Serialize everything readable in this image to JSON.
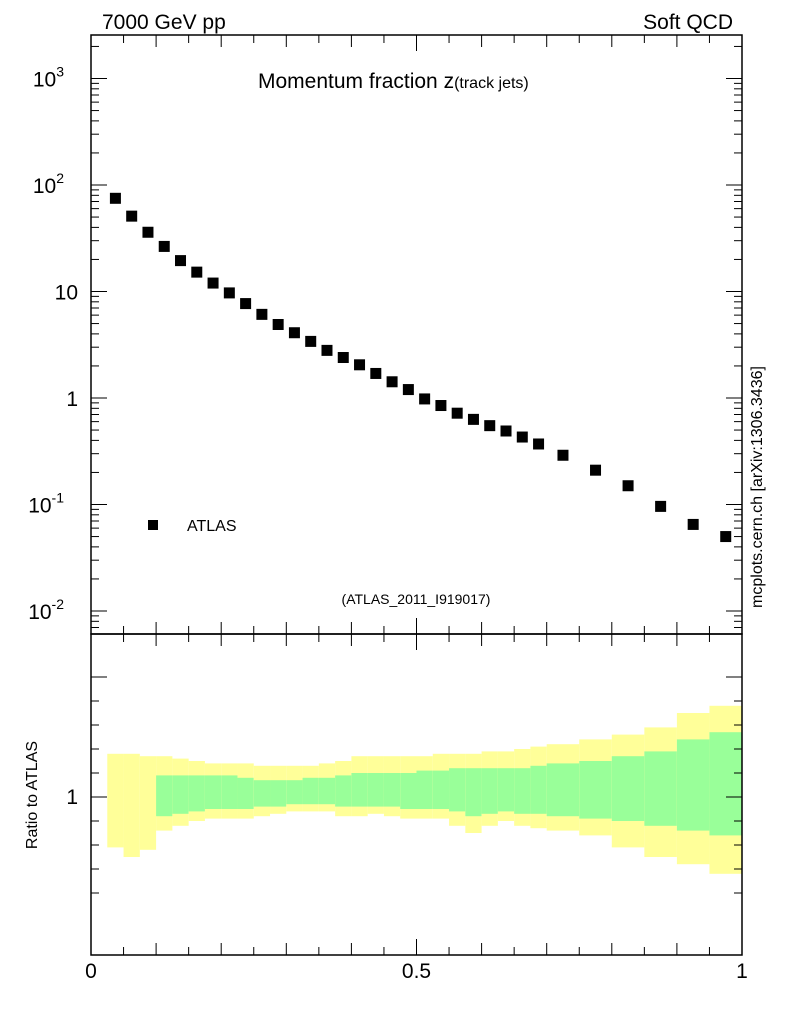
{
  "header": {
    "left": "7000 GeV pp",
    "right": "Soft QCD",
    "side_label": "mcplots.cern.ch [arXiv:1306.3436]"
  },
  "chart_data": {
    "type": "scatter",
    "title": "Momentum fraction z",
    "title_sub": "(track jets)",
    "analysis_id": "(ATLAS_2011_I919017)",
    "legend": "ATLAS",
    "legend_position": "lower-left",
    "grid": false,
    "upper": {
      "yscale": "log",
      "ylim": [
        0.007,
        2500
      ],
      "yticks": [
        {
          "value": 0.01,
          "base": "10",
          "exp": "-2"
        },
        {
          "value": 0.1,
          "base": "10",
          "exp": "-1"
        },
        {
          "value": 1,
          "base": "1",
          "exp": ""
        },
        {
          "value": 10,
          "base": "10",
          "exp": ""
        },
        {
          "value": 100,
          "base": "10",
          "exp": "2"
        },
        {
          "value": 1000,
          "base": "10",
          "exp": "3"
        }
      ]
    },
    "xlim": [
      0,
      1
    ],
    "xticks": [
      {
        "value": 0,
        "label": "0"
      },
      {
        "value": 0.5,
        "label": "0.5"
      },
      {
        "value": 1,
        "label": "1"
      }
    ],
    "series": [
      {
        "name": "ATLAS",
        "x": [
          0.0375,
          0.0625,
          0.0875,
          0.1125,
          0.1375,
          0.1625,
          0.1875,
          0.2125,
          0.2375,
          0.2625,
          0.2875,
          0.3125,
          0.3375,
          0.3625,
          0.3875,
          0.4125,
          0.4375,
          0.4625,
          0.4875,
          0.5125,
          0.5375,
          0.5625,
          0.5875,
          0.6125,
          0.6375,
          0.6625,
          0.6875,
          0.725,
          0.775,
          0.825,
          0.875,
          0.925,
          0.975
        ],
        "y": [
          75,
          51,
          36,
          26.5,
          19.5,
          15.2,
          12.0,
          9.7,
          7.7,
          6.1,
          4.9,
          4.1,
          3.4,
          2.8,
          2.4,
          2.05,
          1.7,
          1.42,
          1.2,
          0.98,
          0.85,
          0.72,
          0.63,
          0.55,
          0.49,
          0.43,
          0.37,
          0.29,
          0.21,
          0.15,
          0.096,
          0.065,
          0.05
        ]
      }
    ],
    "ratio": {
      "ylabel": "Ratio to ATLAS",
      "yticks": [
        {
          "value": 1,
          "label": "1"
        }
      ],
      "ylim": [
        0.55,
        1.65
      ],
      "bins": [
        {
          "x0": 0.025,
          "x1": 0.05,
          "y0": 0.79,
          "y1": 1.18,
          "g0": null,
          "g1": null
        },
        {
          "x0": 0.05,
          "x1": 0.075,
          "y0": 0.75,
          "y1": 1.18,
          "g0": null,
          "g1": null
        },
        {
          "x0": 0.075,
          "x1": 0.1,
          "y0": 0.78,
          "y1": 1.17,
          "g0": null,
          "g1": null
        },
        {
          "x0": 0.1,
          "x1": 0.125,
          "y0": 0.86,
          "y1": 1.17,
          "g0": 0.92,
          "g1": 1.09
        },
        {
          "x0": 0.125,
          "x1": 0.15,
          "y0": 0.88,
          "y1": 1.16,
          "g0": 0.93,
          "g1": 1.09
        },
        {
          "x0": 0.15,
          "x1": 0.175,
          "y0": 0.9,
          "y1": 1.15,
          "g0": 0.94,
          "g1": 1.09
        },
        {
          "x0": 0.175,
          "x1": 0.2,
          "y0": 0.91,
          "y1": 1.14,
          "g0": 0.95,
          "g1": 1.09
        },
        {
          "x0": 0.2,
          "x1": 0.225,
          "y0": 0.91,
          "y1": 1.14,
          "g0": 0.95,
          "g1": 1.09
        },
        {
          "x0": 0.225,
          "x1": 0.25,
          "y0": 0.91,
          "y1": 1.14,
          "g0": 0.95,
          "g1": 1.08
        },
        {
          "x0": 0.25,
          "x1": 0.275,
          "y0": 0.92,
          "y1": 1.13,
          "g0": 0.96,
          "g1": 1.07
        },
        {
          "x0": 0.275,
          "x1": 0.3,
          "y0": 0.93,
          "y1": 1.13,
          "g0": 0.96,
          "g1": 1.07
        },
        {
          "x0": 0.3,
          "x1": 0.325,
          "y0": 0.94,
          "y1": 1.13,
          "g0": 0.97,
          "g1": 1.07
        },
        {
          "x0": 0.325,
          "x1": 0.35,
          "y0": 0.94,
          "y1": 1.13,
          "g0": 0.97,
          "g1": 1.08
        },
        {
          "x0": 0.35,
          "x1": 0.375,
          "y0": 0.94,
          "y1": 1.14,
          "g0": 0.97,
          "g1": 1.08
        },
        {
          "x0": 0.375,
          "x1": 0.4,
          "y0": 0.92,
          "y1": 1.15,
          "g0": 0.96,
          "g1": 1.09
        },
        {
          "x0": 0.4,
          "x1": 0.425,
          "y0": 0.92,
          "y1": 1.17,
          "g0": 0.96,
          "g1": 1.1
        },
        {
          "x0": 0.425,
          "x1": 0.45,
          "y0": 0.93,
          "y1": 1.17,
          "g0": 0.96,
          "g1": 1.1
        },
        {
          "x0": 0.45,
          "x1": 0.475,
          "y0": 0.92,
          "y1": 1.17,
          "g0": 0.96,
          "g1": 1.1
        },
        {
          "x0": 0.475,
          "x1": 0.5,
          "y0": 0.91,
          "y1": 1.17,
          "g0": 0.95,
          "g1": 1.1
        },
        {
          "x0": 0.5,
          "x1": 0.525,
          "y0": 0.91,
          "y1": 1.17,
          "g0": 0.95,
          "g1": 1.11
        },
        {
          "x0": 0.525,
          "x1": 0.55,
          "y0": 0.91,
          "y1": 1.18,
          "g0": 0.95,
          "g1": 1.11
        },
        {
          "x0": 0.55,
          "x1": 0.575,
          "y0": 0.88,
          "y1": 1.18,
          "g0": 0.94,
          "g1": 1.12
        },
        {
          "x0": 0.575,
          "x1": 0.6,
          "y0": 0.85,
          "y1": 1.18,
          "g0": 0.92,
          "g1": 1.12
        },
        {
          "x0": 0.6,
          "x1": 0.625,
          "y0": 0.88,
          "y1": 1.19,
          "g0": 0.93,
          "g1": 1.12
        },
        {
          "x0": 0.625,
          "x1": 0.65,
          "y0": 0.9,
          "y1": 1.19,
          "g0": 0.94,
          "g1": 1.12
        },
        {
          "x0": 0.65,
          "x1": 0.675,
          "y0": 0.88,
          "y1": 1.2,
          "g0": 0.93,
          "g1": 1.12
        },
        {
          "x0": 0.675,
          "x1": 0.7,
          "y0": 0.87,
          "y1": 1.21,
          "g0": 0.93,
          "g1": 1.13
        },
        {
          "x0": 0.7,
          "x1": 0.75,
          "y0": 0.86,
          "y1": 1.22,
          "g0": 0.92,
          "g1": 1.14
        },
        {
          "x0": 0.75,
          "x1": 0.8,
          "y0": 0.84,
          "y1": 1.24,
          "g0": 0.91,
          "g1": 1.15
        },
        {
          "x0": 0.8,
          "x1": 0.85,
          "y0": 0.79,
          "y1": 1.26,
          "g0": 0.9,
          "g1": 1.17
        },
        {
          "x0": 0.85,
          "x1": 0.9,
          "y0": 0.75,
          "y1": 1.29,
          "g0": 0.88,
          "g1": 1.19
        },
        {
          "x0": 0.9,
          "x1": 0.95,
          "y0": 0.72,
          "y1": 1.35,
          "g0": 0.86,
          "g1": 1.24
        },
        {
          "x0": 0.95,
          "x1": 1.0,
          "y0": 0.68,
          "y1": 1.38,
          "g0": 0.84,
          "g1": 1.27
        }
      ]
    },
    "colors": {
      "marker": "#000000",
      "band_outer": "#ffff99",
      "band_inner": "#99ff99",
      "frame": "#000000",
      "id_text": "#999999",
      "side_text": "#666666"
    }
  }
}
